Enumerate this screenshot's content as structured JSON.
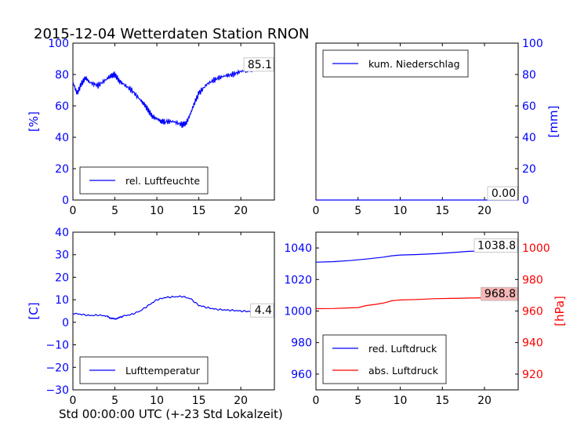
{
  "page": {
    "title": "2015-12-04 Wetterdaten Station RNON",
    "xlabel": "Std 00:00:00 UTC (+-23 Std Lokalzeit)"
  },
  "colors": {
    "blue": "#0000ff",
    "red": "#ff0000"
  },
  "chart_data": [
    {
      "id": "humidity",
      "type": "line",
      "ylabel": "[%]",
      "xlim": [
        0,
        24
      ],
      "ylim": [
        0,
        100
      ],
      "xticks": [
        0,
        5,
        10,
        15,
        20
      ],
      "yticks": [
        0,
        20,
        40,
        60,
        80,
        100
      ],
      "ylabel_side": "left",
      "legend": "bottom-left",
      "series": [
        {
          "name": "rel. Luftfeuchte",
          "color": "#0000ff",
          "x": [
            0,
            0.5,
            1,
            1.5,
            2,
            3,
            4,
            4.5,
            5,
            5.5,
            6,
            7,
            8,
            8.5,
            9,
            9.5,
            10,
            10.5,
            11,
            12,
            13,
            13.5,
            14,
            14.5,
            15,
            16,
            17,
            18,
            19,
            20,
            21,
            22,
            23,
            24
          ],
          "y": [
            75,
            68,
            74,
            78,
            75,
            73,
            77,
            79,
            80,
            76,
            74,
            70,
            64,
            61,
            57,
            53,
            52,
            50,
            50,
            50,
            48,
            49,
            55,
            62,
            68,
            74,
            77,
            79,
            80,
            82,
            83,
            84,
            85,
            85.1
          ]
        }
      ],
      "end_label": "85.1"
    },
    {
      "id": "precipitation",
      "type": "line",
      "ylabel": "[mm]",
      "xlim": [
        0,
        24
      ],
      "ylim": [
        0,
        100
      ],
      "xticks": [
        0,
        5,
        10,
        15,
        20
      ],
      "yticks": [
        0,
        20,
        40,
        60,
        80,
        100
      ],
      "ylabel_side": "right",
      "legend": "top-left",
      "series": [
        {
          "name": "kum. Niederschlag",
          "color": "#0000ff",
          "x": [
            0,
            24
          ],
          "y": [
            0,
            0
          ]
        }
      ],
      "end_label": "0.00"
    },
    {
      "id": "temperature",
      "type": "line",
      "ylabel": "[C]",
      "xlim": [
        0,
        24
      ],
      "ylim": [
        -30,
        40
      ],
      "xticks": [
        0,
        5,
        10,
        15,
        20
      ],
      "yticks": [
        -30,
        -20,
        -10,
        0,
        10,
        20,
        30,
        40
      ],
      "ylabel_side": "left",
      "legend": "bottom-left",
      "series": [
        {
          "name": "Lufttemperatur",
          "color": "#0000ff",
          "x": [
            0,
            1,
            2,
            3,
            4,
            4.5,
            5,
            5.5,
            6,
            7,
            8,
            9,
            10,
            11,
            12,
            13,
            14,
            15,
            16,
            17,
            18,
            19,
            20,
            21,
            22,
            23,
            24
          ],
          "y": [
            4,
            3.5,
            3,
            3.2,
            2.8,
            1.8,
            1.5,
            2,
            2.8,
            3.5,
            5,
            7.5,
            10,
            11,
            11.3,
            11.5,
            10.5,
            7.5,
            6.5,
            5.8,
            5.5,
            5.3,
            5,
            4.8,
            4.6,
            4.5,
            4.4
          ]
        }
      ],
      "end_label": "4.4"
    },
    {
      "id": "pressure",
      "type": "line",
      "xlim": [
        0,
        24
      ],
      "ylim_left": [
        950,
        1050
      ],
      "ylim_right": [
        910,
        1010
      ],
      "ylabel_right": "[hPa]",
      "xticks": [
        0,
        5,
        10,
        15,
        20
      ],
      "yticks_left": [
        960,
        980,
        1000,
        1020,
        1040
      ],
      "yticks_right": [
        920,
        940,
        960,
        980,
        1000
      ],
      "legend": "bottom-left",
      "series": [
        {
          "name": "red. Luftdruck",
          "color": "#0000ff",
          "axis": "left",
          "x": [
            0,
            2,
            4,
            6,
            8,
            9,
            10,
            12,
            14,
            16,
            18,
            20,
            22,
            24
          ],
          "y": [
            1031,
            1031.3,
            1032,
            1033,
            1034.2,
            1035,
            1035.5,
            1035.8,
            1036.3,
            1037,
            1037.8,
            1038.2,
            1038.6,
            1038.8
          ]
        },
        {
          "name": "abs. Luftdruck",
          "color": "#ff0000",
          "axis": "right",
          "x": [
            0,
            2,
            4,
            5,
            6,
            7,
            8,
            9,
            10,
            12,
            14,
            16,
            18,
            20,
            22,
            24
          ],
          "y": [
            961.5,
            961.6,
            962,
            962.2,
            963.5,
            964.2,
            965,
            966.5,
            967,
            967.3,
            967.8,
            968,
            968.2,
            968.4,
            968.6,
            968.8
          ]
        }
      ],
      "end_label_left": "1038.8",
      "end_label_right": "968.8"
    }
  ]
}
